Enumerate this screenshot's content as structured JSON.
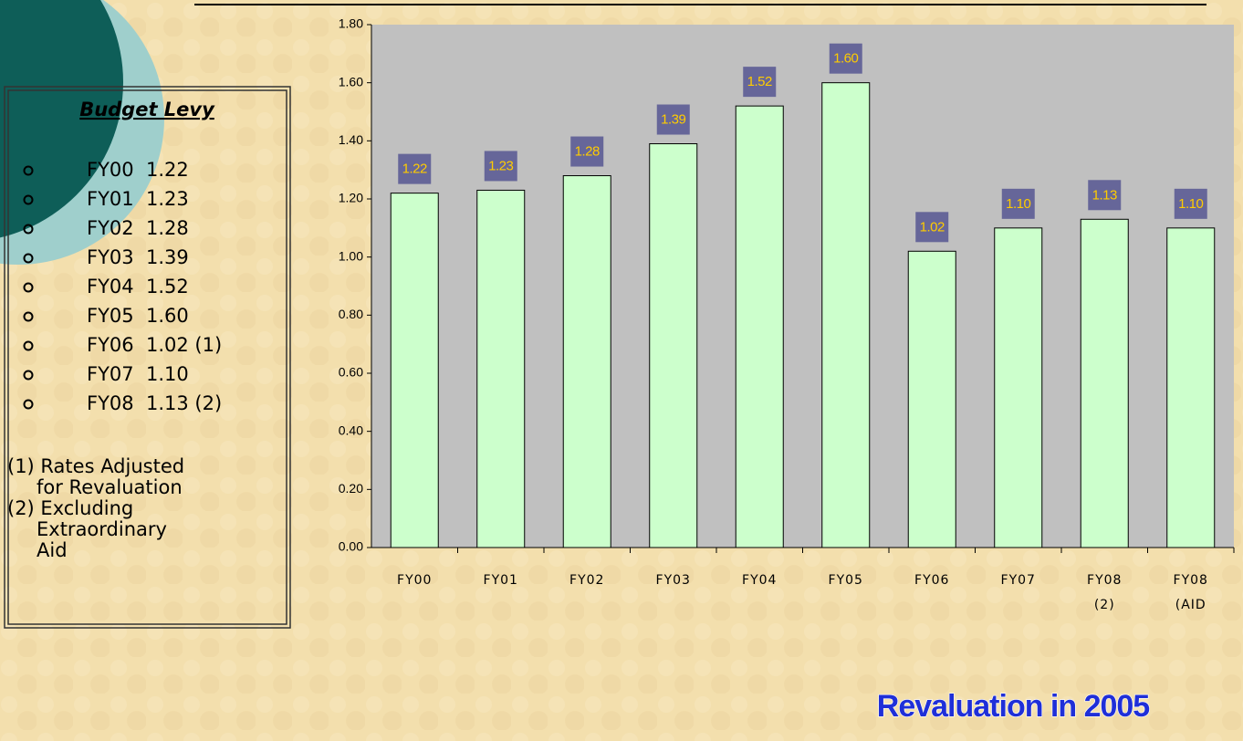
{
  "panel": {
    "title": "Budget Levy",
    "items": [
      "FY00  1.22",
      "FY01  1.23",
      "FY02  1.28",
      "FY03  1.39",
      "FY04  1.52",
      "FY05  1.60",
      "FY06  1.02 (1)",
      "FY07  1.10",
      "FY08  1.13 (2)"
    ],
    "notes": [
      [
        "(1) Rates Adjusted",
        "for Revaluation"
      ],
      [
        "(2) Excluding",
        "Extraordinary",
        "Aid"
      ]
    ]
  },
  "chart_data": {
    "type": "bar",
    "categories": [
      "FY00",
      "FY01",
      "FY02",
      "FY03",
      "FY04",
      "FY05",
      "FY06",
      "FY07",
      "FY08\n(2)",
      "FY08\n(AID"
    ],
    "values": [
      1.22,
      1.23,
      1.28,
      1.39,
      1.52,
      1.6,
      1.02,
      1.1,
      1.13,
      1.1
    ],
    "value_labels": [
      "1.22",
      "1.23",
      "1.28",
      "1.39",
      "1.52",
      "1.60",
      "1.02",
      "1.10",
      "1.13",
      "1.10"
    ],
    "color": "#ccffcc",
    "ylim": [
      0,
      1.8
    ],
    "yticks": [
      {
        "value": 0,
        "label": "0.00"
      },
      {
        "value": 0.2,
        "label": "0.20"
      },
      {
        "value": 0.4,
        "label": "0.40"
      },
      {
        "value": 0.6,
        "label": "0.60"
      },
      {
        "value": 0.8,
        "label": "0.80"
      },
      {
        "value": 1.0,
        "label": "1.00"
      },
      {
        "value": 1.2,
        "label": "1.20"
      },
      {
        "value": 1.4,
        "label": "1.40"
      },
      {
        "value": 1.6,
        "label": "1.60"
      },
      {
        "value": 1.8,
        "label": "1.80"
      }
    ]
  },
  "footer": "Revaluation in 2005"
}
